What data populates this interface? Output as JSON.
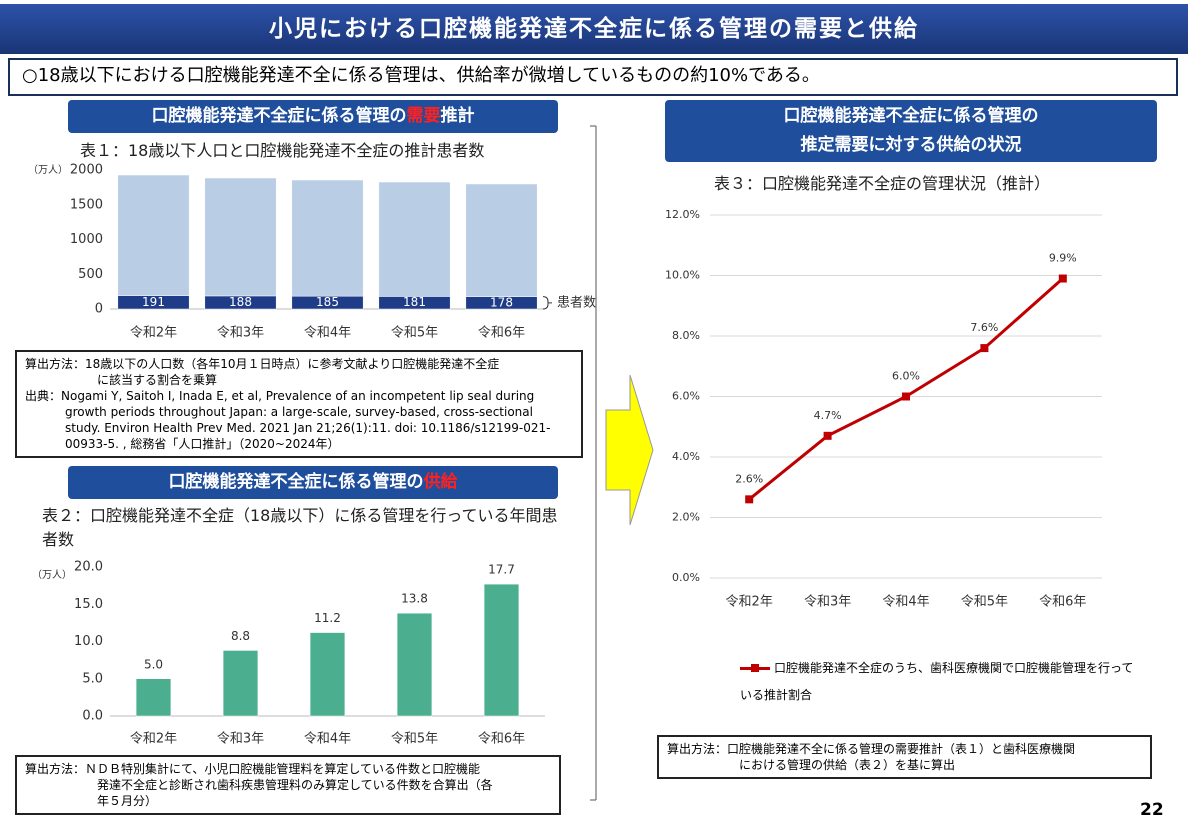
{
  "header": {
    "title": "小児における口腔機能発達不全症に係る管理の需要と供給",
    "summary": "○18歳以下における口腔機能発達不全に係る管理は、供給率が微増しているものの約10%である。",
    "page_number": "22"
  },
  "sections": {
    "demand": [
      "口腔機能発達不全症に係る管理の",
      "需要",
      "推計"
    ],
    "supply": [
      "口腔機能発達不全症に係る管理の",
      "供給"
    ],
    "balance": [
      "口腔機能発達不全症に係る管理の",
      "推定需要に対する供給の状況"
    ]
  },
  "notes": {
    "demand": [
      "算出方法：18歳以下の人口数（各年10月１日時点）に参考文献より口腔機能発達不全症",
      "に該当する割合を乗算",
      "出典：Nogami Y, Saitoh I, Inada E, et al, Prevalence of an incompetent lip seal during",
      "growth periods throughout Japan: a large-scale, survey-based, cross-sectional",
      "study. Environ Health Prev Med. 2021 Jan 21;26(1):11. doi: 10.1186/s12199-021-",
      "00933-5. , 総務省「人口推計」（2020~2024年）"
    ],
    "supply": [
      "算出方法：ＮＤＢ特別集計にて、小児口腔機能管理料を算定している件数と口腔機能",
      "発達不全症と診断され歯科疾患管理料のみ算定している件数を合算出（各",
      "年５月分）"
    ],
    "balance": [
      "算出方法：口腔機能発達不全に係る管理の需要推計（表１）と歯科医療機関",
      "における管理の供給（表２）を基に算出"
    ]
  },
  "chart_data": [
    {
      "type": "bar",
      "title": "表１：18歳以下人口と口腔機能発達不全症の推計患者数",
      "ylabel": "（万人）",
      "categories": [
        "令和2年",
        "令和3年",
        "令和4年",
        "令和5年",
        "令和6年"
      ],
      "series": [
        {
          "name": "患者数",
          "color": "#1f3c88",
          "values": [
            191,
            188,
            185,
            181,
            178
          ]
        },
        {
          "color": "#b9cde5",
          "values": [
            1737,
            1697,
            1671,
            1646,
            1621
          ]
        }
      ],
      "ylim": [
        0,
        2000
      ],
      "yticks": [
        0,
        500,
        1000,
        1500,
        2000
      ],
      "grid": false
    },
    {
      "type": "bar",
      "title": "表２：口腔機能発達不全症（18歳以下）に係る管理を行っている年間患者数",
      "ylabel": "（万人）",
      "categories": [
        "令和2年",
        "令和3年",
        "令和4年",
        "令和5年",
        "令和6年"
      ],
      "series": [
        {
          "color": "#4bae8e",
          "values": [
            5.0,
            8.8,
            11.2,
            13.8,
            17.7
          ],
          "value_labels": [
            "5.0",
            "8.8",
            "11.2",
            "13.8",
            "17.7"
          ]
        }
      ],
      "ylim": [
        0,
        20
      ],
      "yticks": [
        {
          "value": 0,
          "label": "0.0"
        },
        {
          "value": 5,
          "label": "5.0"
        },
        {
          "value": 10,
          "label": "10.0"
        },
        {
          "value": 15,
          "label": "15.0"
        },
        {
          "value": 20,
          "label": "20.0"
        }
      ],
      "grid": false
    },
    {
      "type": "line",
      "title": "表３：口腔機能発達不全症の管理状況（推計）",
      "categories": [
        "令和2年",
        "令和3年",
        "令和4年",
        "令和5年",
        "令和6年"
      ],
      "series": [
        {
          "name": "口腔機能発達不全症のうち、歯科医療機関で口腔機能管理を行っている推計割合",
          "color": "#c00000",
          "values": [
            2.6,
            4.7,
            6.0,
            7.6,
            9.9
          ],
          "value_labels": [
            "2.6%",
            "4.7%",
            "6.0%",
            "7.6%",
            "9.9%"
          ]
        }
      ],
      "ylim": [
        0,
        12
      ],
      "yticks": [
        {
          "value": 0,
          "label": "0.0%"
        },
        {
          "value": 2,
          "label": "2.0%"
        },
        {
          "value": 4,
          "label": "4.0%"
        },
        {
          "value": 6,
          "label": "6.0%"
        },
        {
          "value": 8,
          "label": "8.0%"
        },
        {
          "value": 10,
          "label": "10.0%"
        },
        {
          "value": 12,
          "label": "12.0%"
        }
      ],
      "grid": true
    }
  ]
}
